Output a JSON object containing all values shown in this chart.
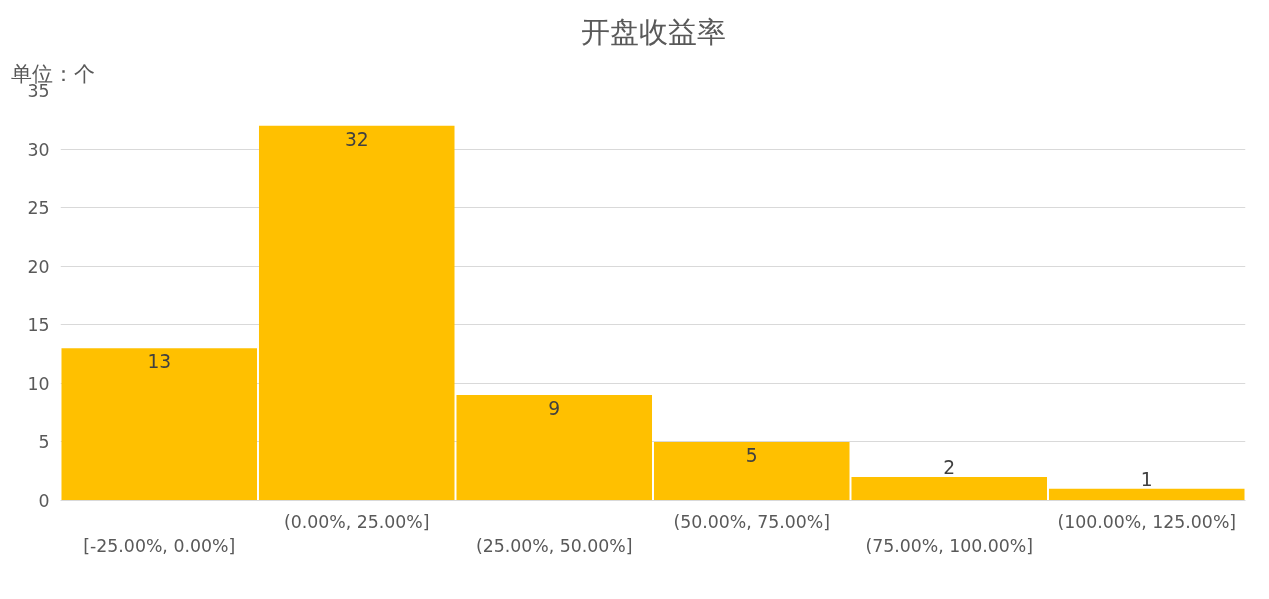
{
  "chart_data": {
    "type": "bar",
    "title": "开盘收益率",
    "annotations": [
      "单位：个"
    ],
    "categories": [
      "[-25.00%, 0.00%]",
      "(0.00%, 25.00%]",
      "(25.00%, 50.00%]",
      "(50.00%, 75.00%]",
      "(75.00%, 100.00%]",
      "(100.00%, 125.00%]"
    ],
    "values": [
      13,
      32,
      9,
      5,
      2,
      1
    ],
    "color": "#ffc000",
    "ylim": [
      0,
      35
    ],
    "yticks": [
      0,
      5,
      10,
      15,
      20,
      25,
      30,
      35
    ],
    "grid": "y",
    "data_labels": true
  }
}
